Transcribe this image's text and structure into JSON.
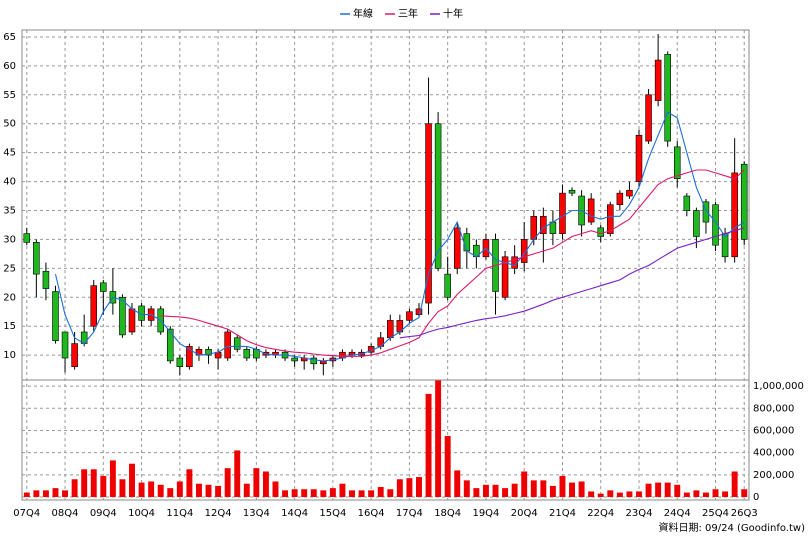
{
  "chart_data": {
    "type": "candlestick",
    "categories": [
      "07Q4",
      null,
      null,
      null,
      "08Q4",
      null,
      null,
      null,
      "09Q4",
      null,
      null,
      null,
      "10Q4",
      null,
      null,
      null,
      "11Q4",
      null,
      null,
      null,
      "12Q4",
      null,
      null,
      null,
      "13Q4",
      null,
      null,
      null,
      "14Q4",
      null,
      null,
      null,
      "15Q4",
      null,
      null,
      null,
      "16Q4",
      null,
      null,
      null,
      "17Q4",
      null,
      null,
      null,
      "18Q4",
      null,
      null,
      null,
      "19Q4",
      null,
      null,
      null,
      "20Q4",
      null,
      null,
      null,
      "21Q4",
      null,
      null,
      null,
      "22Q4",
      null,
      null,
      null,
      "23Q4",
      null,
      null,
      null,
      "24Q4",
      null,
      null,
      null,
      "25Q4",
      null,
      null,
      "26Q3"
    ],
    "open": [
      31,
      29.5,
      24.5,
      21,
      14,
      8,
      14,
      15,
      22.5,
      21,
      20,
      14,
      18.5,
      16,
      18,
      14.5,
      9.5,
      8,
      10,
      11,
      9.5,
      9.5,
      13,
      11,
      11,
      10,
      10,
      10.5,
      9.5,
      9,
      9.5,
      8.5,
      9,
      9.5,
      10,
      10,
      10.5,
      11.5,
      13,
      14,
      16,
      17,
      19,
      50,
      24,
      25,
      31,
      29,
      27,
      30,
      20,
      25,
      26,
      30,
      31,
      33,
      31,
      38.5,
      37.5,
      33,
      32,
      31,
      36,
      37.5,
      40,
      47,
      54,
      62,
      46,
      37.5,
      35,
      36.5,
      36,
      31,
      27,
      43
    ],
    "high": [
      32,
      30,
      26,
      22,
      14,
      14,
      17,
      23,
      23,
      25,
      20.5,
      19,
      19,
      18.5,
      18.5,
      15,
      10,
      12,
      11.5,
      11.5,
      11,
      14.5,
      13.5,
      11.5,
      11.5,
      11,
      11,
      11,
      10,
      10,
      10,
      9.5,
      10,
      11,
      11,
      11,
      12,
      14,
      17,
      17,
      18,
      19,
      58,
      52,
      27,
      33,
      32,
      30,
      31,
      31,
      28,
      29,
      33,
      35,
      35.5,
      35,
      39.5,
      39,
      38.5,
      38,
      32.5,
      36.5,
      38.5,
      40,
      49,
      56,
      65.5,
      62.5,
      47,
      38,
      35.5,
      37,
      36.5,
      32,
      47.5,
      43.5
    ],
    "low": [
      29,
      20,
      19.5,
      12,
      7,
      7.5,
      11.5,
      14,
      17,
      17,
      13,
      13.5,
      15,
      15,
      13.5,
      8.5,
      6.5,
      7.5,
      9,
      8.5,
      7.5,
      9,
      10.5,
      9,
      9,
      9.5,
      9.5,
      9,
      8,
      7.5,
      7.5,
      6.5,
      8,
      9,
      9.5,
      9.5,
      10,
      11,
      12.5,
      13.5,
      15.5,
      16.5,
      17,
      24.5,
      19.5,
      24,
      25,
      25,
      26.5,
      17,
      19.5,
      24,
      24.5,
      29,
      26,
      29,
      30,
      37.5,
      30.5,
      32.5,
      29.5,
      30.5,
      35,
      37,
      39,
      46.5,
      53,
      46,
      39,
      34,
      28.5,
      31,
      28,
      26,
      26,
      29
    ],
    "close": [
      29.5,
      24,
      21.5,
      12.5,
      9.5,
      12,
      12,
      22,
      21,
      19,
      13.5,
      18,
      16,
      18,
      14,
      9,
      8,
      11.5,
      11,
      10,
      10.5,
      14,
      11,
      9.5,
      9.5,
      10.5,
      10.5,
      9.5,
      9,
      9.5,
      8.5,
      9,
      9.5,
      10.5,
      10.5,
      10.5,
      11.5,
      13,
      16,
      16,
      17.5,
      18,
      50,
      25,
      20,
      32,
      28,
      27,
      30,
      21,
      27,
      27,
      30,
      34,
      34,
      31,
      38,
      38,
      32.5,
      37,
      30.5,
      36,
      38,
      38.5,
      48,
      55,
      61,
      47,
      40.5,
      35,
      30.5,
      33,
      29,
      27,
      41.5,
      30
    ],
    "up_color": "#ff0000",
    "down_color": "#1fb81f",
    "series": [
      {
        "name": "年線",
        "color": "#1e6fd9",
        "values": [
          null,
          null,
          null,
          24,
          17,
          13,
          12,
          14,
          17.5,
          20,
          19.5,
          18,
          17,
          17,
          16,
          14,
          12,
          11,
          10,
          10.2,
          10.5,
          11.5,
          11.5,
          11.5,
          11,
          10.2,
          10,
          10,
          9.8,
          9.5,
          9.2,
          9,
          9.2,
          9.5,
          10,
          10.2,
          10.8,
          11.5,
          13,
          14,
          15.5,
          16.5,
          24,
          28,
          30,
          33,
          28,
          27,
          28.5,
          26.5,
          26,
          25.5,
          27.5,
          30,
          32,
          33,
          34,
          35,
          35,
          34,
          33.5,
          34,
          34,
          36,
          39,
          44,
          48,
          52,
          51,
          45,
          39,
          35,
          33,
          30.5,
          32,
          33
        ]
      },
      {
        "name": "三年",
        "color": "#e0186c",
        "values": [
          null,
          null,
          null,
          null,
          null,
          null,
          null,
          null,
          null,
          null,
          null,
          null,
          null,
          null,
          16.8,
          16.7,
          16.6,
          16.4,
          16,
          15.5,
          15,
          14.5,
          13.5,
          12.5,
          11.8,
          11.3,
          11,
          10.7,
          10.5,
          10.4,
          10.2,
          10,
          9.9,
          9.8,
          9.8,
          9.8,
          10,
          10.4,
          11,
          11.6,
          12.2,
          13,
          15.5,
          17.5,
          18.5,
          20.5,
          22,
          23.5,
          25,
          25.5,
          26,
          26.5,
          27,
          27.5,
          28,
          28.5,
          29.5,
          30.5,
          31,
          31.5,
          31,
          31.5,
          32.5,
          33.5,
          35.5,
          37.5,
          39.5,
          40.5,
          41,
          41.5,
          42,
          42,
          41.5,
          41,
          40.5,
          42
        ]
      },
      {
        "name": "十年",
        "color": "#7a1fc8",
        "values": [
          null,
          null,
          null,
          null,
          null,
          null,
          null,
          null,
          null,
          null,
          null,
          null,
          null,
          null,
          null,
          null,
          null,
          null,
          null,
          null,
          null,
          null,
          null,
          null,
          null,
          null,
          null,
          null,
          null,
          null,
          null,
          null,
          null,
          null,
          null,
          null,
          null,
          null,
          null,
          13,
          13.2,
          13.4,
          14,
          14.5,
          14.8,
          15.2,
          15.6,
          16,
          16.3,
          16.5,
          16.8,
          17.2,
          17.6,
          18.2,
          18.8,
          19.5,
          20,
          20.5,
          21,
          21.5,
          22,
          22.5,
          23,
          24,
          24.8,
          25.5,
          26.5,
          27.5,
          28.5,
          29,
          29.5,
          30,
          30.5,
          31,
          31.5,
          32
        ]
      }
    ],
    "ylim": [
      5.7,
      66.2
    ],
    "yticks": [
      10,
      15,
      20,
      25,
      30,
      35,
      40,
      45,
      50,
      55,
      60,
      65
    ],
    "volume": {
      "values": [
        40000,
        60000,
        60000,
        80000,
        60000,
        160000,
        250000,
        250000,
        190000,
        330000,
        160000,
        300000,
        130000,
        140000,
        110000,
        80000,
        140000,
        250000,
        120000,
        110000,
        100000,
        260000,
        420000,
        120000,
        260000,
        230000,
        140000,
        60000,
        70000,
        70000,
        70000,
        60000,
        80000,
        120000,
        60000,
        60000,
        60000,
        90000,
        70000,
        160000,
        170000,
        180000,
        930000,
        1050000,
        550000,
        240000,
        150000,
        80000,
        110000,
        110000,
        80000,
        120000,
        230000,
        150000,
        150000,
        100000,
        190000,
        130000,
        140000,
        50000,
        30000,
        60000,
        40000,
        50000,
        50000,
        120000,
        130000,
        130000,
        110000,
        40000,
        60000,
        40000,
        70000,
        50000,
        230000,
        70000
      ],
      "color": "#ee0000",
      "ylim": [
        0,
        1055000
      ],
      "yticks": [
        0,
        {
          "value": 200000,
          "label": "200,000"
        },
        {
          "value": 400000,
          "label": "400,000"
        },
        {
          "value": 600000,
          "label": "600,000"
        },
        {
          "value": 800000,
          "label": "800,000"
        },
        {
          "value": 1000000,
          "label": "1,000,000"
        }
      ]
    },
    "grid": true,
    "note": "資料日期: 09/24 (Goodinfo.tw)"
  }
}
